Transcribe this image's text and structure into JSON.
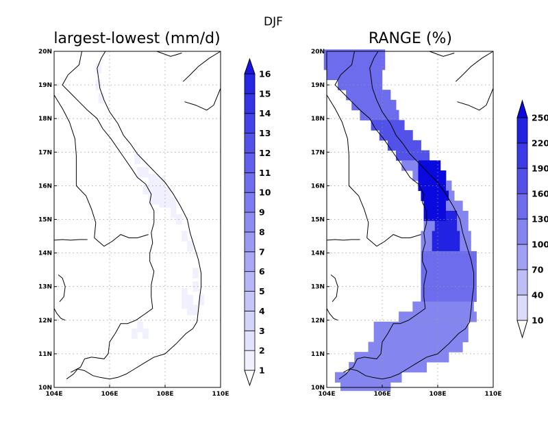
{
  "figure": {
    "suptitle": "DJF"
  },
  "panels": [
    {
      "id": "left",
      "title": "largest-lowest (mm/d)",
      "lon_range": [
        104,
        110
      ],
      "lat_range": [
        10,
        20
      ],
      "x_ticks": [
        "104E",
        "106E",
        "108E",
        "110E"
      ],
      "y_ticks": [
        "10N",
        "11N",
        "12N",
        "13N",
        "14N",
        "15N",
        "16N",
        "17N",
        "18N",
        "19N",
        "20N"
      ],
      "colorbar": {
        "labels": [
          "1",
          "2",
          "3",
          "4",
          "5",
          "6",
          "7",
          "8",
          "9",
          "10",
          "11",
          "12",
          "13",
          "14",
          "15",
          "16"
        ],
        "colors": [
          "#ffffff",
          "#f0f0ff",
          "#e2e2fd",
          "#d4d4fb",
          "#c5c5f9",
          "#b7b7f7",
          "#a8a8f5",
          "#9a9af3",
          "#8c8cf1",
          "#7d7def",
          "#6f6fed",
          "#6060eb",
          "#5252e9",
          "#4343e7",
          "#3535e5",
          "#2626e3",
          "#1616e0"
        ]
      }
    },
    {
      "id": "right",
      "title": "RANGE (%)",
      "lon_range": [
        104,
        110
      ],
      "lat_range": [
        10,
        20
      ],
      "x_ticks": [
        "104E",
        "106E",
        "108E",
        "110E"
      ],
      "y_ticks": [
        "10N",
        "11N",
        "12N",
        "13N",
        "14N",
        "15N",
        "16N",
        "17N",
        "18N",
        "19N",
        "20N"
      ],
      "colorbar": {
        "labels": [
          "10",
          "40",
          "70",
          "100",
          "130",
          "160",
          "190",
          "220",
          "250"
        ],
        "colors": [
          "#ffffff",
          "#dcdcfa",
          "#bebef6",
          "#a0a0f4",
          "#8585f0",
          "#6c6ced",
          "#5252e9",
          "#3a3ae6",
          "#2222e2",
          "#0a0ade"
        ]
      }
    }
  ],
  "colors": {
    "grid": "#9a9a9a",
    "coast": "#000000"
  }
}
